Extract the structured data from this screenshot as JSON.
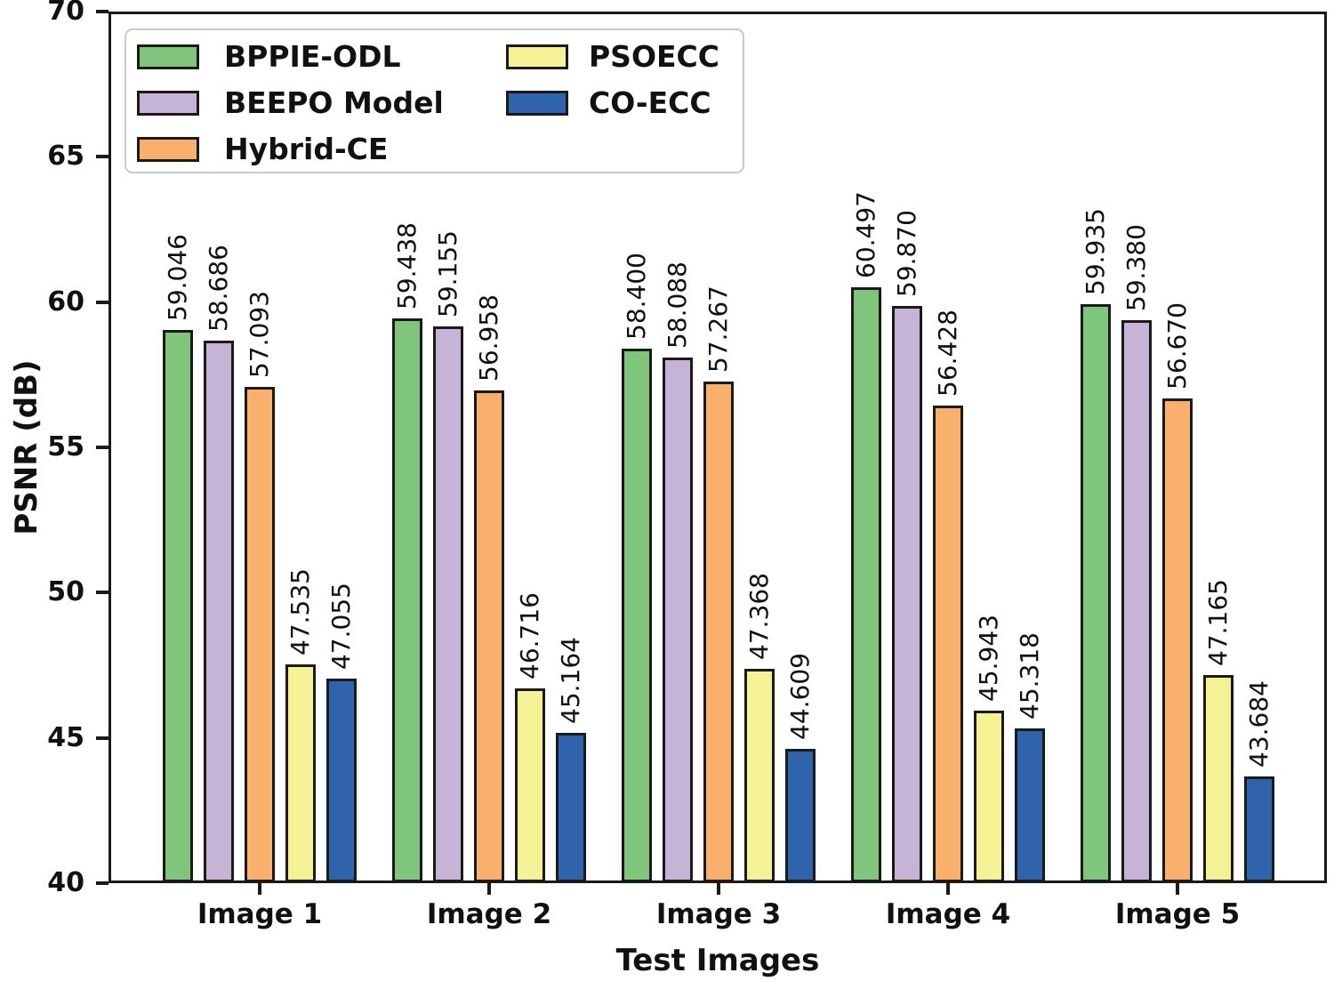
{
  "figure": {
    "background": "#ffffff",
    "text_color": "#111111",
    "axis_color": "#1a1a1a"
  },
  "chart_data": {
    "type": "bar",
    "title": "",
    "xlabel": "Test Images",
    "ylabel": "PSNR (dB)",
    "categories": [
      "Image 1",
      "Image 2",
      "Image 3",
      "Image 4",
      "Image 5"
    ],
    "series": [
      {
        "name": "BPPIE-ODL",
        "color": "#7fc57c",
        "values": [
          59.046,
          59.438,
          58.4,
          60.497,
          59.935
        ]
      },
      {
        "name": "BEEPO Model",
        "color": "#c6b4d7",
        "values": [
          58.686,
          59.155,
          58.088,
          59.87,
          59.38
        ]
      },
      {
        "name": "Hybrid-CE",
        "color": "#f8b06c",
        "values": [
          57.093,
          56.958,
          57.267,
          56.428,
          56.67
        ]
      },
      {
        "name": "PSOECC",
        "color": "#f5f296",
        "values": [
          47.535,
          46.716,
          47.368,
          45.943,
          47.165
        ]
      },
      {
        "name": "CO-ECC",
        "color": "#2f63ac",
        "values": [
          47.055,
          45.164,
          44.609,
          45.318,
          43.684
        ]
      }
    ],
    "value_label_decimals": 3,
    "ylim": [
      40,
      70
    ],
    "yticks": [
      40,
      45,
      50,
      55,
      60,
      65,
      70
    ],
    "grid": false,
    "bar_edge_color": "#1a1a1a",
    "legend_position": "upper left",
    "legend_columns": [
      [
        "BPPIE-ODL",
        "BEEPO Model",
        "Hybrid-CE"
      ],
      [
        "PSOECC",
        "CO-ECC"
      ]
    ]
  }
}
